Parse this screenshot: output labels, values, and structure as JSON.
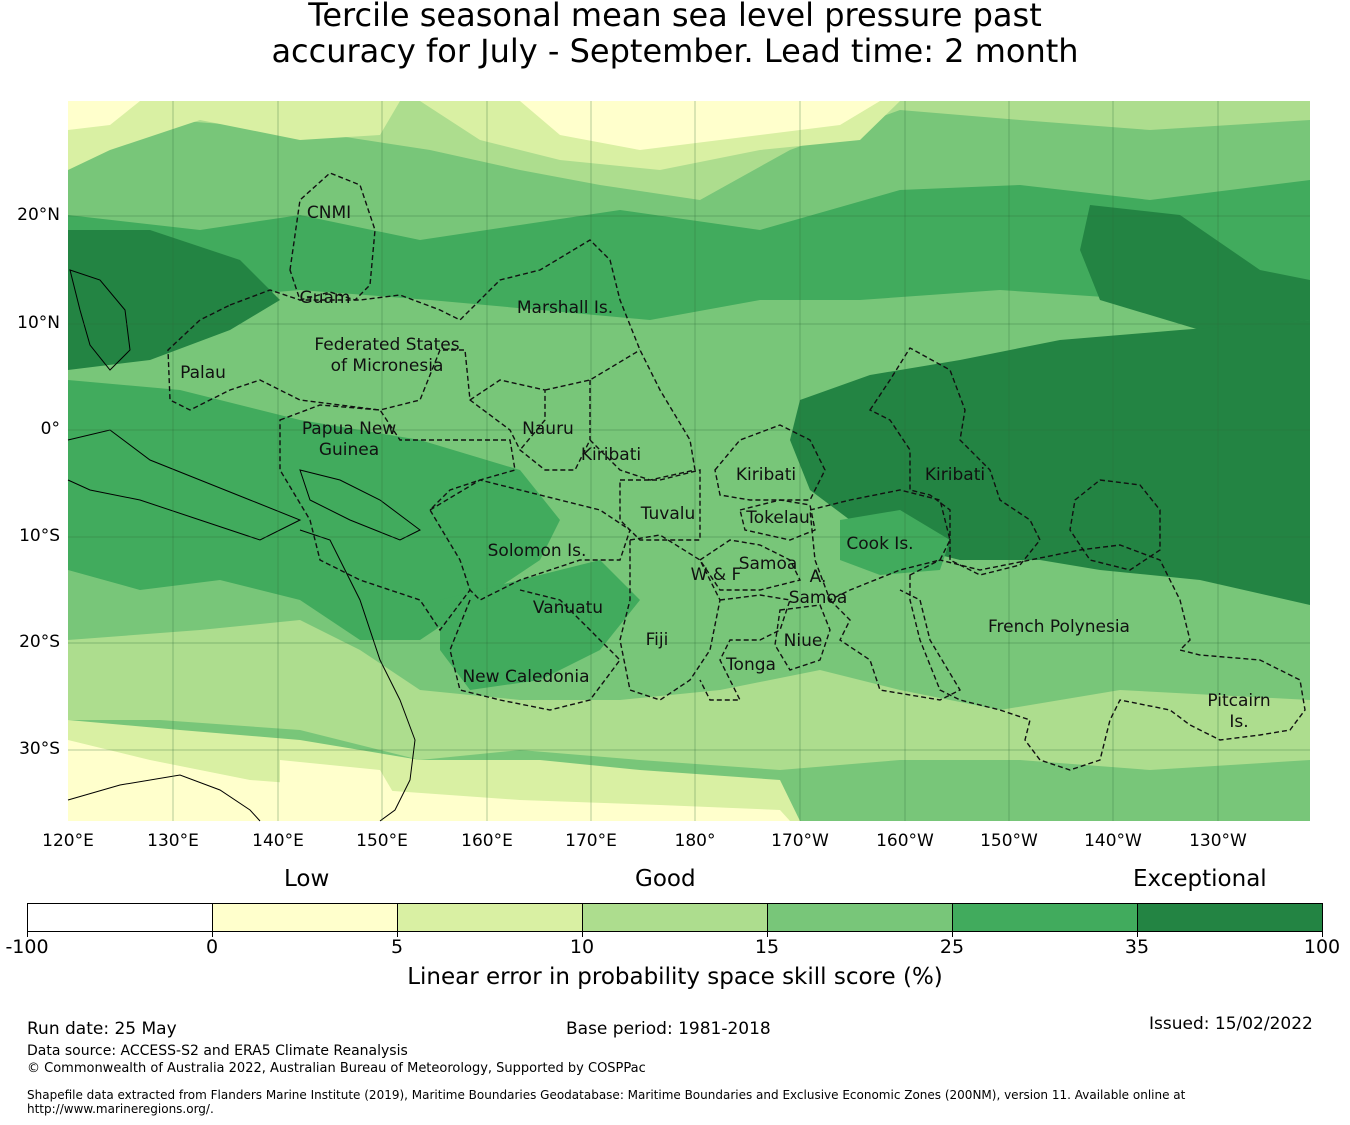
{
  "title": {
    "line1": "Tercile seasonal mean sea level pressure past",
    "line2": "accuracy for July - September. Lead time: 2 month"
  },
  "map": {
    "lat_labels": [
      "20°N",
      "10°N",
      "0°",
      "10°S",
      "20°S",
      "30°S"
    ],
    "lon_labels": [
      "120°E",
      "130°E",
      "140°E",
      "150°E",
      "160°E",
      "170°E",
      "180°",
      "170°W",
      "160°W",
      "150°W",
      "140°W",
      "130°W"
    ],
    "regions": [
      "CNMI",
      "Guam",
      "Marshall Is.",
      "Federated States",
      "of Micronesia",
      "Palau",
      "Papua New",
      "Guinea",
      "Nauru",
      "Kiribati",
      "Kiribati",
      "Kiribati",
      "Tuvalu",
      "Tokelau",
      "Cook Is.",
      "Solomon Is.",
      "Samoa",
      "W & F",
      "A.",
      "Samoa",
      "Vanuatu",
      "Fiji",
      "Niue",
      "Tonga",
      "New Caledonia",
      "French Polynesia",
      "Pitcairn",
      "Is."
    ],
    "colors": {
      "neg": "#ffffff",
      "c0_5": "#ffffcc",
      "c5_10": "#d9f0a3",
      "c10_15": "#addd8e",
      "c15_25": "#78c679",
      "c25_35": "#41ab5d",
      "c35_100": "#238443"
    }
  },
  "colorbar": {
    "headings": [
      "Low",
      "Good",
      "Exceptional"
    ],
    "ticks": [
      "-100",
      "0",
      "5",
      "10",
      "15",
      "25",
      "35",
      "100"
    ],
    "colors": [
      "#ffffff",
      "#ffffcc",
      "#d9f0a3",
      "#addd8e",
      "#78c679",
      "#41ab5d",
      "#238443"
    ],
    "label": "Linear error in probability space skill score (%)"
  },
  "footer": {
    "run_date": "Run date: 25 May",
    "base_period": "Base period: 1981-2018",
    "issued": "Issued: 15/02/2022",
    "data_source": "Data source: ACCESS-S2 and ERA5 Climate Reanalysis",
    "copyright": "© Commonwealth of Australia 2022, Australian Bureau of Meteorology, Supported by COSPPac",
    "shapefile_line1": "Shapefile data extracted from Flanders Marine Institute (2019), Maritime Boundaries Geodatabase: Maritime Boundaries and Exclusive Economic Zones (200NM), version 11. Available online at",
    "shapefile_line2": "http://www.marineregions.org/."
  }
}
